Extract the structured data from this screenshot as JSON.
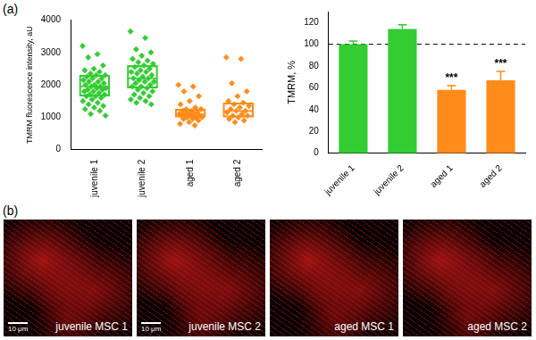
{
  "panel_a_label": "(a)",
  "chart_data": [
    {
      "type": "box_scatter",
      "ylabel": "TMRM fluorescence intensity, aU",
      "categories": [
        "juvenile 1",
        "juvenile 2",
        "aged 1",
        "aged 2"
      ],
      "colors": [
        "#33cc33",
        "#33cc33",
        "#ff8c1a",
        "#ff8c1a"
      ],
      "marker": "diamond",
      "points": [
        [
          3200,
          2950,
          2850,
          2600,
          2500,
          2450,
          2400,
          2350,
          2300,
          2300,
          2250,
          2200,
          2200,
          2150,
          2100,
          2100,
          2050,
          2000,
          2000,
          1950,
          1950,
          1900,
          1900,
          1850,
          1850,
          1800,
          1800,
          1750,
          1700,
          1700,
          1650,
          1650,
          1600,
          1550,
          1500,
          1450,
          1400,
          1350,
          1300,
          1250,
          1200,
          1100,
          1050
        ],
        [
          3650,
          3450,
          3100,
          3000,
          2900,
          2800,
          2750,
          2700,
          2650,
          2600,
          2550,
          2500,
          2450,
          2400,
          2400,
          2350,
          2300,
          2250,
          2200,
          2200,
          2150,
          2100,
          2100,
          2050,
          2000,
          1950,
          1950,
          1900,
          1850,
          1800,
          1750,
          1700,
          1650,
          1600,
          1550,
          1500,
          1450,
          1400
        ],
        [
          2000,
          1950,
          1800,
          1650,
          1500,
          1400,
          1300,
          1250,
          1250,
          1200,
          1200,
          1150,
          1150,
          1100,
          1100,
          1100,
          1050,
          1050,
          1050,
          1000,
          1000,
          1000,
          950,
          950,
          900,
          850,
          800,
          750
        ],
        [
          2850,
          2800,
          2050,
          1800,
          1650,
          1500,
          1450,
          1400,
          1350,
          1300,
          1250,
          1200,
          1200,
          1150,
          1100,
          1050,
          1050,
          1000,
          950,
          900,
          850
        ]
      ],
      "boxes": [
        {
          "q1": 1650,
          "median": 1950,
          "q3": 2300
        },
        {
          "q1": 1900,
          "median": 2200,
          "q3": 2600
        },
        {
          "q1": 1000,
          "median": 1100,
          "q3": 1250
        },
        {
          "q1": 1000,
          "median": 1200,
          "q3": 1450
        }
      ],
      "ylim": [
        0,
        4000
      ],
      "yticks": [
        0,
        1000,
        2000,
        3000,
        4000
      ],
      "grid": false
    },
    {
      "type": "bar",
      "ylabel": "TMRM, %",
      "categories": [
        "juvenile 1",
        "juvenile 2",
        "aged 1",
        "aged 2"
      ],
      "values": [
        100,
        114,
        58,
        67
      ],
      "errors": [
        3,
        4,
        4,
        8
      ],
      "colors": [
        "#33cc33",
        "#33cc33",
        "#ff8c1a",
        "#ff8c1a"
      ],
      "reference_line": {
        "value": 100,
        "line_style": "dashed"
      },
      "annotations": [
        {
          "category": "aged 1",
          "text": "***"
        },
        {
          "category": "aged 2",
          "text": "***"
        }
      ],
      "ylim": [
        0,
        130
      ],
      "yticks": [
        0,
        20,
        40,
        60,
        80,
        100,
        120
      ],
      "grid": false
    }
  ],
  "panel_b": {
    "label": "(b)",
    "images": [
      {
        "label": "juvenile MSC 1",
        "scale_bar": "10 μm"
      },
      {
        "label": "juvenile MSC 2",
        "scale_bar": "10 μm"
      },
      {
        "label": "aged MSC 1"
      },
      {
        "label": "aged MSC 2"
      }
    ]
  }
}
